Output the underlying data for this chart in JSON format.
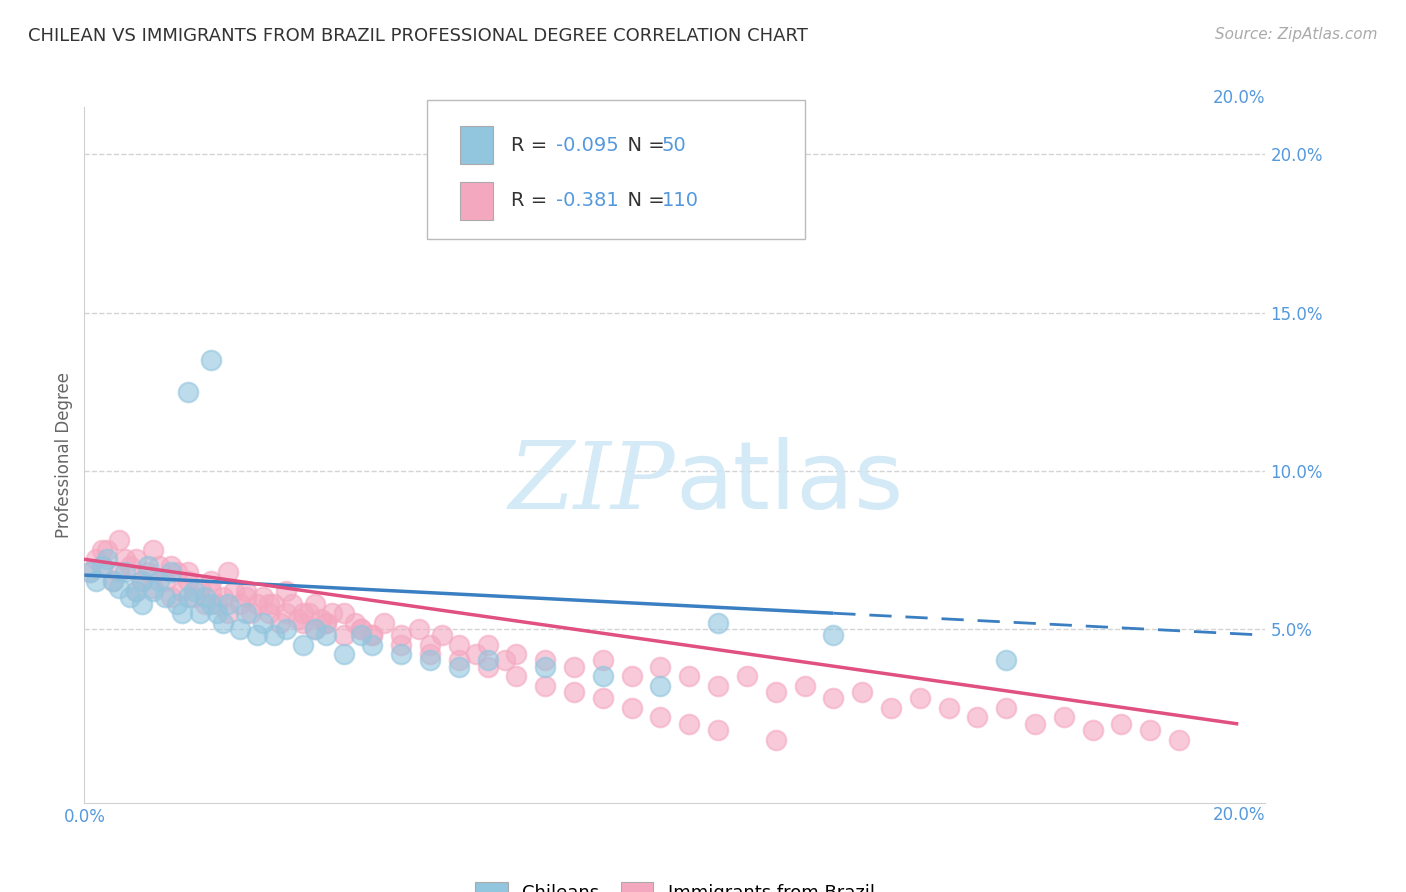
{
  "title": "CHILEAN VS IMMIGRANTS FROM BRAZIL PROFESSIONAL DEGREE CORRELATION CHART",
  "source_text": "Source: ZipAtlas.com",
  "ylabel": "Professional Degree",
  "xlabel": "",
  "xlim": [
    0.0,
    0.205
  ],
  "ylim": [
    -0.005,
    0.215
  ],
  "xtick_labels": [
    "0.0%",
    "",
    "",
    "",
    ""
  ],
  "xtick_values": [
    0.0,
    0.05,
    0.1,
    0.15,
    0.2
  ],
  "ytick_labels": [
    "5.0%",
    "10.0%",
    "15.0%",
    "20.0%"
  ],
  "ytick_values": [
    0.05,
    0.1,
    0.15,
    0.2
  ],
  "legend_r": [
    -0.095,
    -0.381
  ],
  "legend_n": [
    50,
    110
  ],
  "chilean_color": "#92c5de",
  "brazil_color": "#f4a8c0",
  "chilean_line_color": "#3a7fc1",
  "brazil_line_color": "#e05080",
  "watermark_color": "#d0e8f5",
  "background_color": "#ffffff",
  "grid_color": "#d0d0d0",
  "chilean_scatter_x": [
    0.001,
    0.002,
    0.003,
    0.004,
    0.005,
    0.006,
    0.007,
    0.008,
    0.009,
    0.01,
    0.01,
    0.011,
    0.012,
    0.013,
    0.014,
    0.015,
    0.016,
    0.017,
    0.018,
    0.019,
    0.02,
    0.021,
    0.022,
    0.023,
    0.024,
    0.025,
    0.027,
    0.028,
    0.03,
    0.031,
    0.033,
    0.035,
    0.038,
    0.04,
    0.042,
    0.045,
    0.048,
    0.05,
    0.055,
    0.06,
    0.065,
    0.07,
    0.08,
    0.09,
    0.1,
    0.11,
    0.13,
    0.16,
    0.018,
    0.022
  ],
  "chilean_scatter_y": [
    0.068,
    0.065,
    0.07,
    0.072,
    0.065,
    0.063,
    0.068,
    0.06,
    0.062,
    0.065,
    0.058,
    0.07,
    0.062,
    0.065,
    0.06,
    0.068,
    0.058,
    0.055,
    0.06,
    0.062,
    0.055,
    0.06,
    0.058,
    0.055,
    0.052,
    0.058,
    0.05,
    0.055,
    0.048,
    0.052,
    0.048,
    0.05,
    0.045,
    0.05,
    0.048,
    0.042,
    0.048,
    0.045,
    0.042,
    0.04,
    0.038,
    0.04,
    0.038,
    0.035,
    0.032,
    0.052,
    0.048,
    0.04,
    0.125,
    0.135
  ],
  "brazil_scatter_x": [
    0.001,
    0.002,
    0.003,
    0.004,
    0.005,
    0.006,
    0.007,
    0.008,
    0.009,
    0.01,
    0.011,
    0.012,
    0.013,
    0.014,
    0.015,
    0.016,
    0.017,
    0.018,
    0.019,
    0.02,
    0.021,
    0.022,
    0.023,
    0.024,
    0.025,
    0.026,
    0.027,
    0.028,
    0.029,
    0.03,
    0.031,
    0.032,
    0.033,
    0.034,
    0.035,
    0.036,
    0.037,
    0.038,
    0.039,
    0.04,
    0.041,
    0.042,
    0.043,
    0.045,
    0.047,
    0.048,
    0.05,
    0.052,
    0.055,
    0.058,
    0.06,
    0.062,
    0.065,
    0.068,
    0.07,
    0.073,
    0.075,
    0.08,
    0.085,
    0.09,
    0.095,
    0.1,
    0.105,
    0.11,
    0.115,
    0.12,
    0.125,
    0.13,
    0.135,
    0.14,
    0.145,
    0.15,
    0.155,
    0.16,
    0.165,
    0.17,
    0.175,
    0.18,
    0.185,
    0.19,
    0.003,
    0.006,
    0.009,
    0.012,
    0.015,
    0.018,
    0.022,
    0.025,
    0.028,
    0.032,
    0.035,
    0.038,
    0.04,
    0.042,
    0.045,
    0.048,
    0.05,
    0.055,
    0.06,
    0.065,
    0.07,
    0.075,
    0.08,
    0.085,
    0.09,
    0.095,
    0.1,
    0.105,
    0.11,
    0.12
  ],
  "brazil_scatter_y": [
    0.068,
    0.072,
    0.07,
    0.075,
    0.065,
    0.068,
    0.072,
    0.07,
    0.062,
    0.065,
    0.068,
    0.063,
    0.07,
    0.065,
    0.06,
    0.068,
    0.062,
    0.065,
    0.06,
    0.063,
    0.058,
    0.062,
    0.058,
    0.06,
    0.055,
    0.062,
    0.058,
    0.06,
    0.055,
    0.058,
    0.06,
    0.055,
    0.058,
    0.052,
    0.055,
    0.058,
    0.053,
    0.052,
    0.055,
    0.05,
    0.053,
    0.052,
    0.055,
    0.048,
    0.052,
    0.05,
    0.048,
    0.052,
    0.048,
    0.05,
    0.045,
    0.048,
    0.045,
    0.042,
    0.045,
    0.04,
    0.042,
    0.04,
    0.038,
    0.04,
    0.035,
    0.038,
    0.035,
    0.032,
    0.035,
    0.03,
    0.032,
    0.028,
    0.03,
    0.025,
    0.028,
    0.025,
    0.022,
    0.025,
    0.02,
    0.022,
    0.018,
    0.02,
    0.018,
    0.015,
    0.075,
    0.078,
    0.072,
    0.075,
    0.07,
    0.068,
    0.065,
    0.068,
    0.062,
    0.058,
    0.062,
    0.055,
    0.058,
    0.052,
    0.055,
    0.05,
    0.048,
    0.045,
    0.042,
    0.04,
    0.038,
    0.035,
    0.032,
    0.03,
    0.028,
    0.025,
    0.022,
    0.02,
    0.018,
    0.015
  ],
  "ch_line_x_solid_end": 0.13,
  "ch_line_x0": 0.0,
  "ch_line_x1": 0.205,
  "ch_line_y_at_0": 0.067,
  "ch_line_y_at_end": 0.048,
  "br_line_x0": 0.0,
  "br_line_x1": 0.2,
  "br_line_y_at_0": 0.072,
  "br_line_y_at_end": 0.02
}
